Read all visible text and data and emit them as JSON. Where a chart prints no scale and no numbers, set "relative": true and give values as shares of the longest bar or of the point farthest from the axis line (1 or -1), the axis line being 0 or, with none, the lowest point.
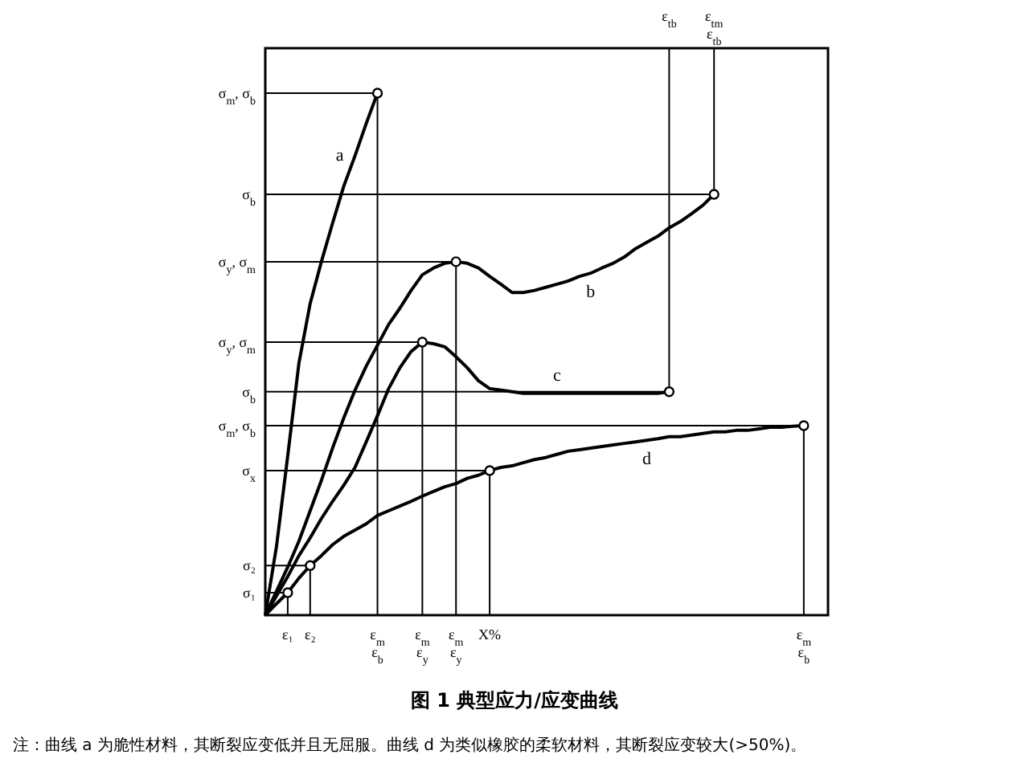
{
  "chart_data": {
    "type": "line",
    "relative": true,
    "title": "图 1 典型应力/应变曲线",
    "categories": [
      null,
      null,
      "ε₁",
      null,
      "ε₂",
      null,
      null,
      null,
      null,
      null,
      "ε$_{m}$\nε$_{b}$",
      null,
      null,
      null,
      "ε$_{m}$\nε$_{y}$",
      null,
      null,
      "ε$_{m}$\nε$_{y}$",
      null,
      null,
      "X%",
      null,
      null,
      null,
      null,
      null,
      null,
      null,
      null,
      null,
      null,
      null,
      null,
      null,
      null,
      null,
      null,
      null,
      null,
      null,
      null,
      null,
      null,
      null,
      null,
      null,
      null,
      null,
      "ε$_{m}$\nε$_{b}$"
    ],
    "series": [
      {
        "name": "a",
        "color": "#000000",
        "values": [
          0,
          0.132,
          0.305,
          0.483,
          0.597,
          0.677,
          0.751,
          0.822,
          0.88,
          0.942,
          1,
          null,
          null,
          null,
          null,
          null,
          null,
          null,
          null,
          null,
          null,
          null,
          null,
          null,
          null,
          null,
          null,
          null,
          null,
          null,
          null,
          null,
          null,
          null,
          null,
          null,
          null,
          null,
          null,
          null,
          null,
          null,
          null,
          null,
          null,
          null,
          null,
          null,
          null
        ]
      },
      {
        "name": "b",
        "color": "#000000",
        "values": [
          0,
          0.046,
          0.092,
          0.142,
          0.2,
          0.258,
          0.32,
          0.378,
          0.431,
          0.477,
          0.517,
          0.557,
          0.588,
          0.622,
          0.652,
          0.665,
          0.674,
          0.677,
          0.674,
          0.665,
          0.649,
          0.634,
          0.618,
          0.618,
          0.622,
          0.628,
          0.634,
          0.64,
          0.649,
          0.655,
          0.665,
          0.674,
          0.686,
          0.702,
          0.714,
          0.726,
          0.742,
          0.754,
          0.769,
          0.785,
          0.806,
          null,
          null,
          null,
          null,
          null,
          null,
          null,
          null
        ]
      },
      {
        "name": "c",
        "color": "#000000",
        "values": [
          0,
          0.037,
          0.074,
          0.114,
          0.148,
          0.185,
          0.218,
          0.249,
          0.283,
          0.332,
          0.382,
          0.434,
          0.474,
          0.505,
          0.523,
          0.52,
          0.514,
          0.495,
          0.474,
          0.449,
          0.434,
          0.431,
          0.428,
          0.425,
          0.425,
          0.425,
          0.425,
          0.425,
          0.425,
          0.425,
          0.425,
          0.425,
          0.425,
          0.425,
          0.425,
          0.425,
          0.428,
          null,
          null,
          null,
          null,
          null,
          null,
          null,
          null,
          null,
          null,
          null,
          null
        ]
      },
      {
        "name": "d",
        "color": "#000000",
        "values": [
          0,
          0.022,
          0.043,
          0.071,
          0.095,
          0.114,
          0.135,
          0.151,
          0.163,
          0.175,
          0.191,
          0.2,
          0.209,
          0.218,
          0.228,
          0.237,
          0.246,
          0.252,
          0.262,
          0.268,
          0.277,
          0.283,
          0.286,
          0.292,
          0.298,
          0.302,
          0.308,
          0.314,
          0.317,
          0.32,
          0.323,
          0.326,
          0.329,
          0.332,
          0.335,
          0.338,
          0.342,
          0.342,
          0.345,
          0.348,
          0.351,
          0.351,
          0.354,
          0.354,
          0.357,
          0.36,
          0.36,
          0.362,
          0.363
        ]
      },
      {
        "type": "scatter",
        "marker": "circle",
        "color": "#000000",
        "values": [
          null,
          null,
          0.043,
          null,
          0.095,
          null,
          null,
          null,
          null,
          null,
          1,
          null,
          null,
          null,
          0.523,
          null,
          null,
          0.677,
          null,
          null,
          0.277,
          null,
          null,
          null,
          null,
          null,
          null,
          null,
          null,
          null,
          null,
          null,
          null,
          null,
          null,
          null,
          0.428,
          null,
          null,
          null,
          0.806,
          null,
          null,
          null,
          null,
          null,
          null,
          null,
          0.363
        ]
      }
    ],
    "ref_lines": [
      {
        "axis": "y",
        "value": 1,
        "label": "σ$_{m}$, σ$_{b}$"
      },
      {
        "axis": "y",
        "value": 0.806,
        "label": "σ$_{b}$"
      },
      {
        "axis": "y",
        "value": 0.677,
        "label": "σ$_{y}$, σ$_{m}$"
      },
      {
        "axis": "y",
        "value": 0.523,
        "label": "σ$_{y}$, σ$_{m}$"
      },
      {
        "axis": "y",
        "value": 0.428,
        "label": "σ$_{b}$"
      },
      {
        "axis": "y",
        "value": 0.363,
        "label": "σ$_{m}$, σ$_{b}$"
      },
      {
        "axis": "y",
        "value": 0.277,
        "label": "σ$_{x}$"
      },
      {
        "axis": "y",
        "value": 0.095,
        "label": "σ₂"
      },
      {
        "axis": "y",
        "value": 0.043,
        "label": "σ₁"
      }
    ],
    "annotations": [
      {
        "text": "ε$_{tb}$",
        "y": 0.428
      },
      {
        "text": "ε$_{tm}$\nε$_{tb}$",
        "y": 0.806
      },
      "注：曲线 a 为脆性材料，其断裂应变低并且无屈服。曲线 d 为类似橡胶的柔软材料，其断裂应变较大(>50%)。"
    ]
  }
}
